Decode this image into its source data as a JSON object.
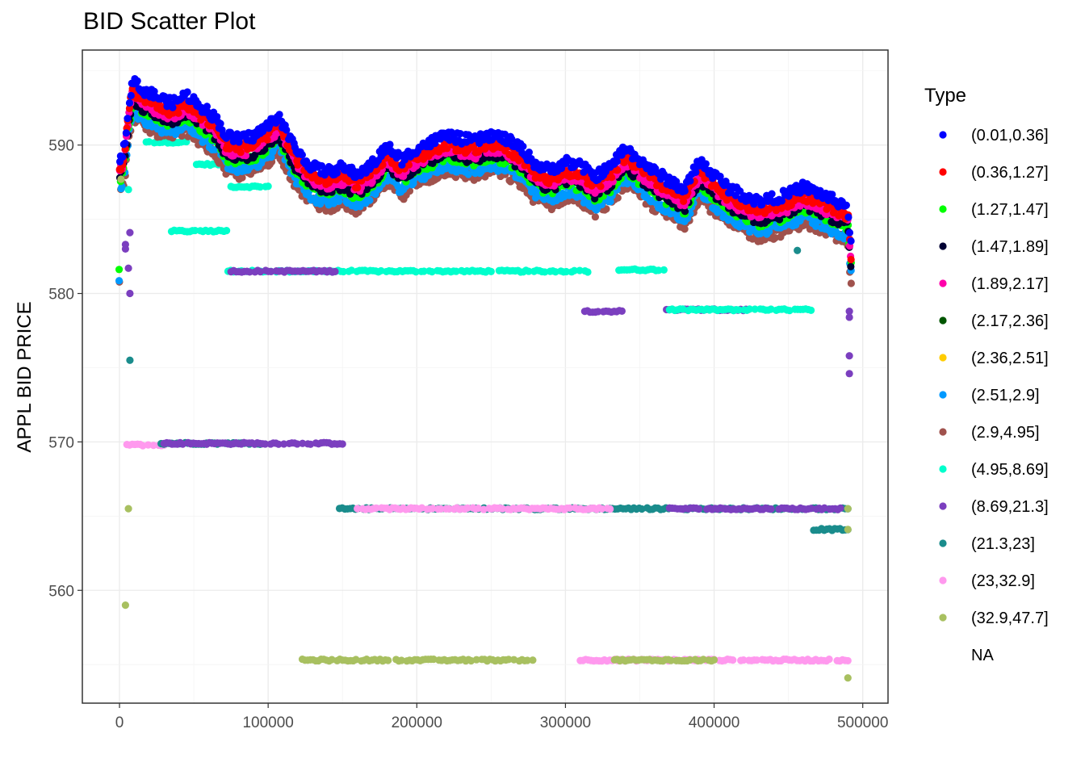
{
  "chart_data": {
    "type": "scatter",
    "title": "BID Scatter Plot",
    "xlabel": "",
    "ylabel": "APPL BID PRICE",
    "xlim": [
      -25000,
      517000
    ],
    "ylim": [
      552.4,
      596.4
    ],
    "x_ticks": [
      0,
      100000,
      200000,
      300000,
      400000,
      500000
    ],
    "x_tick_labels": [
      "0",
      "100000",
      "200000",
      "300000",
      "400000",
      "500000"
    ],
    "y_ticks": [
      560,
      570,
      580,
      590
    ],
    "y_tick_labels": [
      "560",
      "570",
      "580",
      "590"
    ],
    "grid": true,
    "legend": {
      "title": "Type",
      "position": "right",
      "entries": [
        {
          "label": "(0.01,0.36]",
          "color": "#0000ff"
        },
        {
          "label": "(0.36,1.27]",
          "color": "#ff0000"
        },
        {
          "label": "(1.27,1.47]",
          "color": "#00ff00"
        },
        {
          "label": "(1.47,1.89]",
          "color": "#000033"
        },
        {
          "label": "(1.89,2.17]",
          "color": "#ff00aa"
        },
        {
          "label": "(2.17,2.36]",
          "color": "#005500"
        },
        {
          "label": "(2.36,2.51]",
          "color": "#ffcc00"
        },
        {
          "label": "(2.51,2.9]",
          "color": "#0099ff"
        },
        {
          "label": "(2.9,4.95]",
          "color": "#a0524d"
        },
        {
          "label": "(4.95,8.69]",
          "color": "#00ffcc"
        },
        {
          "label": "(8.69,21.3]",
          "color": "#7b3fbf"
        },
        {
          "label": "(21.3,23]",
          "color": "#1a8c8c"
        },
        {
          "label": "(23,32.9]",
          "color": "#ff99ee"
        },
        {
          "label": "(32.9,47.7]",
          "color": "#a8c060"
        },
        {
          "label": "NA",
          "color": "none"
        }
      ]
    },
    "price_curve": [
      [
        0,
        589.0
      ],
      [
        3000,
        589.8
      ],
      [
        6000,
        592.5
      ],
      [
        9000,
        594.5
      ],
      [
        12000,
        594.0
      ],
      [
        18000,
        593.6
      ],
      [
        25000,
        593.3
      ],
      [
        35000,
        592.8
      ],
      [
        45000,
        593.4
      ],
      [
        55000,
        592.6
      ],
      [
        65000,
        591.8
      ],
      [
        72000,
        590.6
      ],
      [
        80000,
        590.4
      ],
      [
        90000,
        590.6
      ],
      [
        100000,
        591.3
      ],
      [
        107000,
        592.0
      ],
      [
        112000,
        591.0
      ],
      [
        118000,
        589.8
      ],
      [
        125000,
        589.0
      ],
      [
        130000,
        588.5
      ],
      [
        140000,
        588.2
      ],
      [
        150000,
        588.5
      ],
      [
        160000,
        588.0
      ],
      [
        170000,
        588.7
      ],
      [
        180000,
        589.9
      ],
      [
        190000,
        589.0
      ],
      [
        200000,
        589.8
      ],
      [
        210000,
        590.2
      ],
      [
        220000,
        590.7
      ],
      [
        230000,
        590.4
      ],
      [
        240000,
        590.3
      ],
      [
        250000,
        590.7
      ],
      [
        260000,
        590.4
      ],
      [
        270000,
        589.8
      ],
      [
        280000,
        588.7
      ],
      [
        290000,
        588.3
      ],
      [
        300000,
        588.9
      ],
      [
        310000,
        588.6
      ],
      [
        320000,
        587.9
      ],
      [
        330000,
        588.5
      ],
      [
        340000,
        589.8
      ],
      [
        350000,
        589.0
      ],
      [
        360000,
        588.2
      ],
      [
        370000,
        587.6
      ],
      [
        380000,
        587.0
      ],
      [
        390000,
        588.9
      ],
      [
        400000,
        588.0
      ],
      [
        410000,
        587.1
      ],
      [
        420000,
        586.6
      ],
      [
        430000,
        586.2
      ],
      [
        440000,
        586.4
      ],
      [
        450000,
        586.7
      ],
      [
        460000,
        587.2
      ],
      [
        470000,
        586.8
      ],
      [
        480000,
        586.3
      ],
      [
        490000,
        585.9
      ],
      [
        492000,
        583.2
      ]
    ],
    "curve_series_offsets": [
      {
        "label": "(0.01,0.36]",
        "offset": 0.0
      },
      {
        "label": "(0.36,1.27]",
        "offset": -0.6
      },
      {
        "label": "(1.89,2.17]",
        "offset": -0.9
      },
      {
        "label": "(1.47,1.89]",
        "offset": -1.2
      },
      {
        "label": "(1.27,1.47]",
        "offset": -1.4
      },
      {
        "label": "(2.51,2.9]",
        "offset": -2.0
      },
      {
        "label": "(2.9,4.95]",
        "offset": -2.4
      }
    ],
    "horizontal_segments": [
      {
        "label": "(4.95,8.69]",
        "y": 584.2,
        "x": [
          35000,
          72000
        ]
      },
      {
        "label": "(4.95,8.69]",
        "y": 590.2,
        "x": [
          18000,
          45000
        ]
      },
      {
        "label": "(4.95,8.69]",
        "y": 588.7,
        "x": [
          50000,
          72000
        ]
      },
      {
        "label": "(4.95,8.69]",
        "y": 587.2,
        "x": [
          75000,
          100000
        ]
      },
      {
        "label": "(4.95,8.69]",
        "y": 581.5,
        "x": [
          73000,
          315000
        ]
      },
      {
        "label": "(8.69,21.3]",
        "y": 581.5,
        "x": [
          75000,
          145000
        ]
      },
      {
        "label": "(4.95,8.69]",
        "y": 581.6,
        "x": [
          336000,
          368000
        ]
      },
      {
        "label": "(8.69,21.3]",
        "y": 578.8,
        "x": [
          313000,
          338000
        ]
      },
      {
        "label": "(8.69,21.3]",
        "y": 578.9,
        "x": [
          368000,
          425000
        ]
      },
      {
        "label": "(4.95,8.69]",
        "y": 578.9,
        "x": [
          370000,
          467000
        ]
      },
      {
        "label": "(23,32.9]",
        "y": 569.8,
        "x": [
          5000,
          30000
        ]
      },
      {
        "label": "(21.3,23]",
        "y": 569.9,
        "x": [
          28000,
          100000
        ]
      },
      {
        "label": "(8.69,21.3]",
        "y": 569.9,
        "x": [
          30000,
          150000
        ]
      },
      {
        "label": "(21.3,23]",
        "y": 565.5,
        "x": [
          148000,
          490000
        ]
      },
      {
        "label": "(23,32.9]",
        "y": 565.5,
        "x": [
          160000,
          330000
        ]
      },
      {
        "label": "(8.69,21.3]",
        "y": 565.5,
        "x": [
          370000,
          485000
        ]
      },
      {
        "label": "(21.3,23]",
        "y": 564.1,
        "x": [
          467000,
          490000
        ]
      },
      {
        "label": "(32.9,47.7]",
        "y": 555.3,
        "x": [
          123000,
          278000
        ]
      },
      {
        "label": "(23,32.9]",
        "y": 555.3,
        "x": [
          310000,
          490000
        ]
      },
      {
        "label": "(32.9,47.7]",
        "y": 555.3,
        "x": [
          333000,
          400000
        ]
      }
    ],
    "isolated_points": [
      {
        "label": "(32.9,47.7]",
        "x": 4000,
        "y": 559.0
      },
      {
        "label": "(32.9,47.7]",
        "x": 6000,
        "y": 565.5
      },
      {
        "label": "(21.3,23]",
        "x": 7000,
        "y": 575.5
      },
      {
        "label": "(8.69,21.3]",
        "x": 7000,
        "y": 580.0
      },
      {
        "label": "(8.69,21.3]",
        "x": 6000,
        "y": 581.7
      },
      {
        "label": "(8.69,21.3]",
        "x": 4000,
        "y": 583.3
      },
      {
        "label": "(8.69,21.3]",
        "x": 4000,
        "y": 583.0
      },
      {
        "label": "(8.69,21.3]",
        "x": 7000,
        "y": 584.1
      },
      {
        "label": "(4.95,8.69]",
        "x": 6000,
        "y": 587.0
      },
      {
        "label": "(32.9,47.7]",
        "x": 1000,
        "y": 587.7
      },
      {
        "label": "(8.69,21.3]",
        "x": 491000,
        "y": 578.8
      },
      {
        "label": "(8.69,21.3]",
        "x": 491000,
        "y": 578.4
      },
      {
        "label": "(8.69,21.3]",
        "x": 491000,
        "y": 575.8
      },
      {
        "label": "(8.69,21.3]",
        "x": 491000,
        "y": 574.6
      },
      {
        "label": "(32.9,47.7]",
        "x": 490000,
        "y": 565.5
      },
      {
        "label": "(32.9,47.7]",
        "x": 490000,
        "y": 564.1
      },
      {
        "label": "(32.9,47.7]",
        "x": 490000,
        "y": 554.1
      },
      {
        "label": "(21.3,23]",
        "x": 456000,
        "y": 582.9
      }
    ]
  }
}
